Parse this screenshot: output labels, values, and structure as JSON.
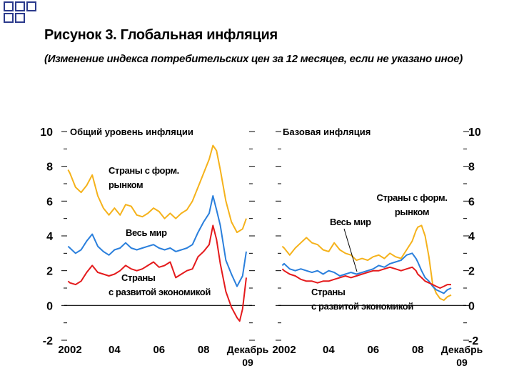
{
  "header": {
    "title": "Рисунок 3. Глобальная инфляция",
    "subtitle": "(Изменение индекса потребительских цен за 12 месяцев, если не указано иное)"
  },
  "colors": {
    "emerging": "#f5b21b",
    "world": "#2a7fdc",
    "advanced": "#e41a1c",
    "decoration": "#2b3a8c"
  },
  "chart_data": [
    {
      "type": "line",
      "title": "Общий уровень инфляции",
      "ylim": [
        -2,
        10
      ],
      "yticks": [
        "-2",
        "0",
        "2",
        "4",
        "6",
        "8",
        "10"
      ],
      "xticks": [
        "2002",
        "04",
        "06",
        "08",
        "Декабрь 09"
      ],
      "x_range": [
        2002,
        2009.917
      ],
      "series": [
        {
          "key": "emerging",
          "name": "Страны с форм. рынком",
          "points": [
            [
              2001.917,
              7.8
            ],
            [
              2002.0,
              7.6
            ],
            [
              2002.25,
              6.8
            ],
            [
              2002.5,
              6.5
            ],
            [
              2002.75,
              6.9
            ],
            [
              2003.0,
              7.5
            ],
            [
              2003.25,
              6.3
            ],
            [
              2003.5,
              5.6
            ],
            [
              2003.75,
              5.2
            ],
            [
              2004.0,
              5.6
            ],
            [
              2004.25,
              5.2
            ],
            [
              2004.5,
              5.8
            ],
            [
              2004.75,
              5.7
            ],
            [
              2005.0,
              5.2
            ],
            [
              2005.25,
              5.1
            ],
            [
              2005.5,
              5.3
            ],
            [
              2005.75,
              5.6
            ],
            [
              2006.0,
              5.4
            ],
            [
              2006.25,
              5.0
            ],
            [
              2006.5,
              5.3
            ],
            [
              2006.75,
              5.0
            ],
            [
              2007.0,
              5.3
            ],
            [
              2007.25,
              5.5
            ],
            [
              2007.5,
              6.0
            ],
            [
              2007.75,
              6.8
            ],
            [
              2008.0,
              7.6
            ],
            [
              2008.25,
              8.4
            ],
            [
              2008.42,
              9.2
            ],
            [
              2008.58,
              8.9
            ],
            [
              2008.75,
              7.8
            ],
            [
              2009.0,
              6.0
            ],
            [
              2009.25,
              4.8
            ],
            [
              2009.5,
              4.2
            ],
            [
              2009.75,
              4.4
            ],
            [
              2009.917,
              5.0
            ]
          ]
        },
        {
          "key": "world",
          "name": "Весь мир",
          "points": [
            [
              2001.917,
              3.4
            ],
            [
              2002.0,
              3.3
            ],
            [
              2002.25,
              3.0
            ],
            [
              2002.5,
              3.2
            ],
            [
              2002.75,
              3.7
            ],
            [
              2003.0,
              4.1
            ],
            [
              2003.25,
              3.4
            ],
            [
              2003.5,
              3.1
            ],
            [
              2003.75,
              2.9
            ],
            [
              2004.0,
              3.2
            ],
            [
              2004.25,
              3.3
            ],
            [
              2004.5,
              3.6
            ],
            [
              2004.75,
              3.3
            ],
            [
              2005.0,
              3.2
            ],
            [
              2005.25,
              3.3
            ],
            [
              2005.5,
              3.4
            ],
            [
              2005.75,
              3.5
            ],
            [
              2006.0,
              3.3
            ],
            [
              2006.25,
              3.2
            ],
            [
              2006.5,
              3.3
            ],
            [
              2006.75,
              3.1
            ],
            [
              2007.0,
              3.2
            ],
            [
              2007.25,
              3.3
            ],
            [
              2007.5,
              3.5
            ],
            [
              2007.75,
              4.2
            ],
            [
              2008.0,
              4.8
            ],
            [
              2008.25,
              5.3
            ],
            [
              2008.42,
              6.3
            ],
            [
              2008.58,
              5.5
            ],
            [
              2008.75,
              4.6
            ],
            [
              2009.0,
              2.6
            ],
            [
              2009.25,
              1.8
            ],
            [
              2009.5,
              1.1
            ],
            [
              2009.75,
              1.7
            ],
            [
              2009.917,
              3.1
            ]
          ]
        },
        {
          "key": "advanced",
          "name": "Страны с развитой экономикой",
          "points": [
            [
              2001.917,
              1.4
            ],
            [
              2002.0,
              1.3
            ],
            [
              2002.25,
              1.2
            ],
            [
              2002.5,
              1.4
            ],
            [
              2002.75,
              1.9
            ],
            [
              2003.0,
              2.3
            ],
            [
              2003.25,
              1.9
            ],
            [
              2003.5,
              1.8
            ],
            [
              2003.75,
              1.7
            ],
            [
              2004.0,
              1.8
            ],
            [
              2004.25,
              2.0
            ],
            [
              2004.5,
              2.3
            ],
            [
              2004.75,
              2.1
            ],
            [
              2005.0,
              2.0
            ],
            [
              2005.25,
              2.1
            ],
            [
              2005.5,
              2.3
            ],
            [
              2005.75,
              2.5
            ],
            [
              2006.0,
              2.2
            ],
            [
              2006.25,
              2.3
            ],
            [
              2006.5,
              2.5
            ],
            [
              2006.75,
              1.6
            ],
            [
              2007.0,
              1.8
            ],
            [
              2007.25,
              2.0
            ],
            [
              2007.5,
              2.1
            ],
            [
              2007.75,
              2.8
            ],
            [
              2008.0,
              3.1
            ],
            [
              2008.25,
              3.5
            ],
            [
              2008.42,
              4.6
            ],
            [
              2008.58,
              3.8
            ],
            [
              2008.75,
              2.4
            ],
            [
              2009.0,
              0.8
            ],
            [
              2009.25,
              -0.1
            ],
            [
              2009.5,
              -0.7
            ],
            [
              2009.62,
              -0.9
            ],
            [
              2009.75,
              -0.2
            ],
            [
              2009.917,
              1.6
            ]
          ]
        }
      ],
      "annotations": [
        {
          "series": "emerging",
          "lines": [
            "Страны с форм.",
            "рынком"
          ]
        },
        {
          "series": "world",
          "lines": [
            "Весь мир"
          ]
        },
        {
          "series": "advanced",
          "lines": [
            "Страны",
            "с развитой экономикой"
          ]
        }
      ]
    },
    {
      "type": "line",
      "title": "Базовая инфляция",
      "ylim": [
        -2,
        10
      ],
      "yticks": [
        "-2",
        "0",
        "2",
        "4",
        "6",
        "8",
        "10"
      ],
      "xticks": [
        "2002",
        "04",
        "06",
        "08",
        "Декабрь 09"
      ],
      "x_range": [
        2002,
        2009.917
      ],
      "series": [
        {
          "key": "emerging",
          "name": "Страны с форм. рынком",
          "points": [
            [
              2001.917,
              3.4
            ],
            [
              2002.0,
              3.3
            ],
            [
              2002.25,
              2.9
            ],
            [
              2002.5,
              3.3
            ],
            [
              2002.75,
              3.6
            ],
            [
              2003.0,
              3.9
            ],
            [
              2003.25,
              3.6
            ],
            [
              2003.5,
              3.5
            ],
            [
              2003.75,
              3.2
            ],
            [
              2004.0,
              3.1
            ],
            [
              2004.25,
              3.6
            ],
            [
              2004.5,
              3.2
            ],
            [
              2004.75,
              3.0
            ],
            [
              2005.0,
              2.9
            ],
            [
              2005.25,
              2.6
            ],
            [
              2005.5,
              2.7
            ],
            [
              2005.75,
              2.6
            ],
            [
              2006.0,
              2.8
            ],
            [
              2006.25,
              2.9
            ],
            [
              2006.5,
              2.7
            ],
            [
              2006.75,
              3.0
            ],
            [
              2007.0,
              2.8
            ],
            [
              2007.25,
              2.7
            ],
            [
              2007.5,
              3.2
            ],
            [
              2007.75,
              3.7
            ],
            [
              2007.92,
              4.3
            ],
            [
              2008.0,
              4.5
            ],
            [
              2008.17,
              4.6
            ],
            [
              2008.33,
              4.0
            ],
            [
              2008.5,
              2.8
            ],
            [
              2008.67,
              1.2
            ],
            [
              2008.83,
              0.7
            ],
            [
              2009.0,
              0.4
            ],
            [
              2009.17,
              0.3
            ],
            [
              2009.33,
              0.5
            ],
            [
              2009.5,
              0.6
            ]
          ]
        },
        {
          "key": "world",
          "name": "Весь мир",
          "points": [
            [
              2001.917,
              2.3
            ],
            [
              2002.0,
              2.4
            ],
            [
              2002.25,
              2.1
            ],
            [
              2002.5,
              2.0
            ],
            [
              2002.75,
              2.1
            ],
            [
              2003.0,
              2.0
            ],
            [
              2003.25,
              1.9
            ],
            [
              2003.5,
              2.0
            ],
            [
              2003.75,
              1.8
            ],
            [
              2004.0,
              2.0
            ],
            [
              2004.25,
              1.9
            ],
            [
              2004.5,
              1.7
            ],
            [
              2004.75,
              1.8
            ],
            [
              2005.0,
              1.9
            ],
            [
              2005.25,
              1.8
            ],
            [
              2005.5,
              1.9
            ],
            [
              2005.75,
              2.0
            ],
            [
              2006.0,
              2.1
            ],
            [
              2006.25,
              2.3
            ],
            [
              2006.5,
              2.2
            ],
            [
              2006.75,
              2.4
            ],
            [
              2007.0,
              2.5
            ],
            [
              2007.25,
              2.6
            ],
            [
              2007.5,
              2.9
            ],
            [
              2007.75,
              3.0
            ],
            [
              2007.92,
              2.7
            ],
            [
              2008.0,
              2.5
            ],
            [
              2008.17,
              2.0
            ],
            [
              2008.33,
              1.6
            ],
            [
              2008.5,
              1.4
            ],
            [
              2008.67,
              1.1
            ],
            [
              2008.83,
              0.9
            ],
            [
              2009.0,
              0.8
            ],
            [
              2009.17,
              0.7
            ],
            [
              2009.33,
              0.9
            ],
            [
              2009.5,
              1.0
            ]
          ]
        },
        {
          "key": "advanced",
          "name": "Страны с развитой экономикой",
          "points": [
            [
              2001.917,
              2.1
            ],
            [
              2002.0,
              2.0
            ],
            [
              2002.25,
              1.8
            ],
            [
              2002.5,
              1.7
            ],
            [
              2002.75,
              1.5
            ],
            [
              2003.0,
              1.4
            ],
            [
              2003.25,
              1.4
            ],
            [
              2003.5,
              1.3
            ],
            [
              2003.75,
              1.4
            ],
            [
              2004.0,
              1.4
            ],
            [
              2004.25,
              1.5
            ],
            [
              2004.5,
              1.6
            ],
            [
              2004.75,
              1.7
            ],
            [
              2005.0,
              1.6
            ],
            [
              2005.25,
              1.7
            ],
            [
              2005.5,
              1.8
            ],
            [
              2005.75,
              1.9
            ],
            [
              2006.0,
              2.0
            ],
            [
              2006.25,
              2.0
            ],
            [
              2006.5,
              2.1
            ],
            [
              2006.75,
              2.2
            ],
            [
              2007.0,
              2.1
            ],
            [
              2007.25,
              2.0
            ],
            [
              2007.5,
              2.1
            ],
            [
              2007.75,
              2.2
            ],
            [
              2007.92,
              2.0
            ],
            [
              2008.0,
              1.8
            ],
            [
              2008.17,
              1.6
            ],
            [
              2008.33,
              1.4
            ],
            [
              2008.5,
              1.3
            ],
            [
              2008.67,
              1.2
            ],
            [
              2008.83,
              1.1
            ],
            [
              2009.0,
              1.0
            ],
            [
              2009.17,
              1.1
            ],
            [
              2009.33,
              1.2
            ],
            [
              2009.5,
              1.2
            ]
          ]
        }
      ],
      "annotations": [
        {
          "series": "emerging",
          "lines": [
            "Страны с форм.",
            "рынком"
          ]
        },
        {
          "series": "world",
          "lines": [
            "Весь мир"
          ]
        },
        {
          "series": "advanced",
          "lines": [
            "Страны",
            "с развитой экономикой"
          ]
        }
      ]
    }
  ]
}
